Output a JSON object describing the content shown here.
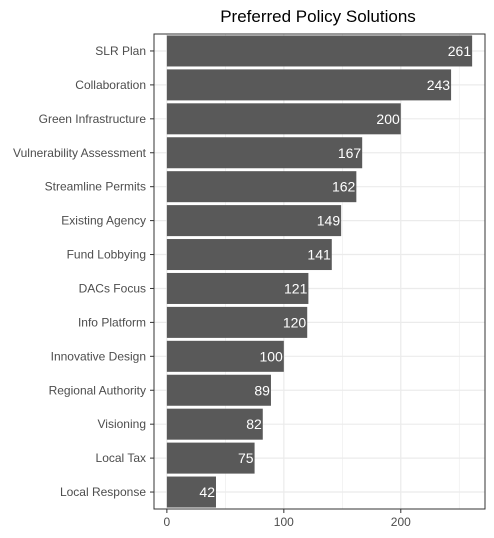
{
  "chart_data": {
    "type": "bar",
    "orientation": "horizontal",
    "title": "Preferred Policy Solutions",
    "xlabel": "",
    "ylabel": "",
    "categories": [
      "SLR Plan",
      "Collaboration",
      "Green Infrastructure",
      "Vulnerability Assessment",
      "Streamline Permits",
      "Existing Agency",
      "Fund Lobbying",
      "DACs Focus",
      "Info Platform",
      "Innovative Design",
      "Regional Authority",
      "Visioning",
      "Local Tax",
      "Local Response"
    ],
    "values": [
      261,
      243,
      200,
      167,
      162,
      149,
      141,
      121,
      120,
      100,
      89,
      82,
      75,
      42
    ],
    "data_labels": [
      "261",
      "243",
      "200",
      "167",
      "162",
      "149",
      "141",
      "121",
      "120",
      "100",
      "89",
      "82",
      "75",
      "42"
    ],
    "xlim": [
      -11,
      272
    ],
    "x_ticks": [
      0,
      100,
      200
    ],
    "x_tick_labels": [
      "0",
      "100",
      "200"
    ],
    "grid": true,
    "legend": "none",
    "colors": {
      "bar": "#595959",
      "grid": "#ebebeb",
      "axis_text": "#4d4d4d",
      "data_label": "#ffffff",
      "background": "#ffffff",
      "panel_border": "#333333"
    }
  }
}
